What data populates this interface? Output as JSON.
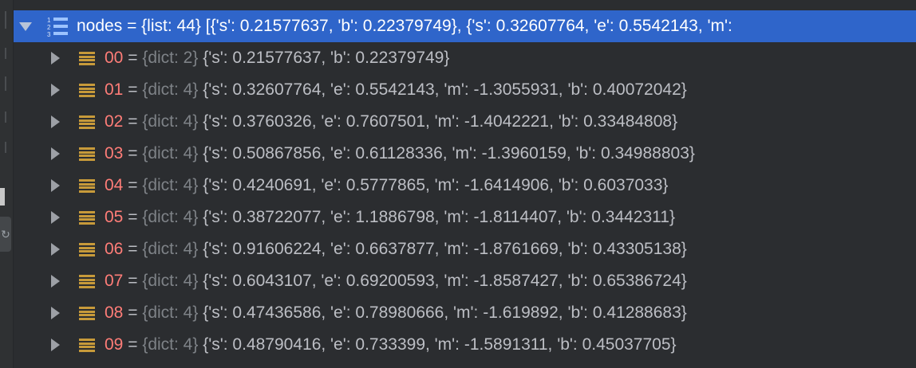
{
  "root": {
    "name": "nodes",
    "operator": "=",
    "type_info": "{list: 44}",
    "value": "[{'s': 0.21577637, 'b': 0.22379749}, {'s': 0.32607764, 'e': 0.5542143, 'm':",
    "icon": "list-icon",
    "expanded": true
  },
  "children": [
    {
      "index": "00",
      "operator": "=",
      "type_info": "{dict: 2}",
      "value": "{'s': 0.21577637, 'b': 0.22379749}"
    },
    {
      "index": "01",
      "operator": "=",
      "type_info": "{dict: 4}",
      "value": "{'s': 0.32607764, 'e': 0.5542143, 'm': -1.3055931, 'b': 0.40072042}"
    },
    {
      "index": "02",
      "operator": "=",
      "type_info": "{dict: 4}",
      "value": "{'s': 0.3760326, 'e': 0.7607501, 'm': -1.4042221, 'b': 0.33484808}"
    },
    {
      "index": "03",
      "operator": "=",
      "type_info": "{dict: 4}",
      "value": "{'s': 0.50867856, 'e': 0.61128336, 'm': -1.3960159, 'b': 0.34988803}"
    },
    {
      "index": "04",
      "operator": "=",
      "type_info": "{dict: 4}",
      "value": "{'s': 0.4240691, 'e': 0.5777865, 'm': -1.6414906, 'b': 0.6037033}"
    },
    {
      "index": "05",
      "operator": "=",
      "type_info": "{dict: 4}",
      "value": "{'s': 0.38722077, 'e': 1.1886798, 'm': -1.8114407, 'b': 0.3442311}"
    },
    {
      "index": "06",
      "operator": "=",
      "type_info": "{dict: 4}",
      "value": "{'s': 0.91606224, 'e': 0.6637877, 'm': -1.8761669, 'b': 0.43305138}"
    },
    {
      "index": "07",
      "operator": "=",
      "type_info": "{dict: 4}",
      "value": "{'s': 0.6043107, 'e': 0.69200593, 'm': -1.8587427, 'b': 0.65386724}"
    },
    {
      "index": "08",
      "operator": "=",
      "type_info": "{dict: 4}",
      "value": "{'s': 0.47436586, 'e': 0.78980666, 'm': -1.619892, 'b': 0.41288683}"
    },
    {
      "index": "09",
      "operator": "=",
      "type_info": "{dict: 4}",
      "value": "{'s': 0.48790416, 'e': 0.733399, 'm': -1.5891311, 'b': 0.45037705}"
    }
  ],
  "colors": {
    "selection": "#2f65ca",
    "key_name": "#ff7d78",
    "type_info": "#7e8287",
    "dict_icon": "#c79a3a"
  }
}
